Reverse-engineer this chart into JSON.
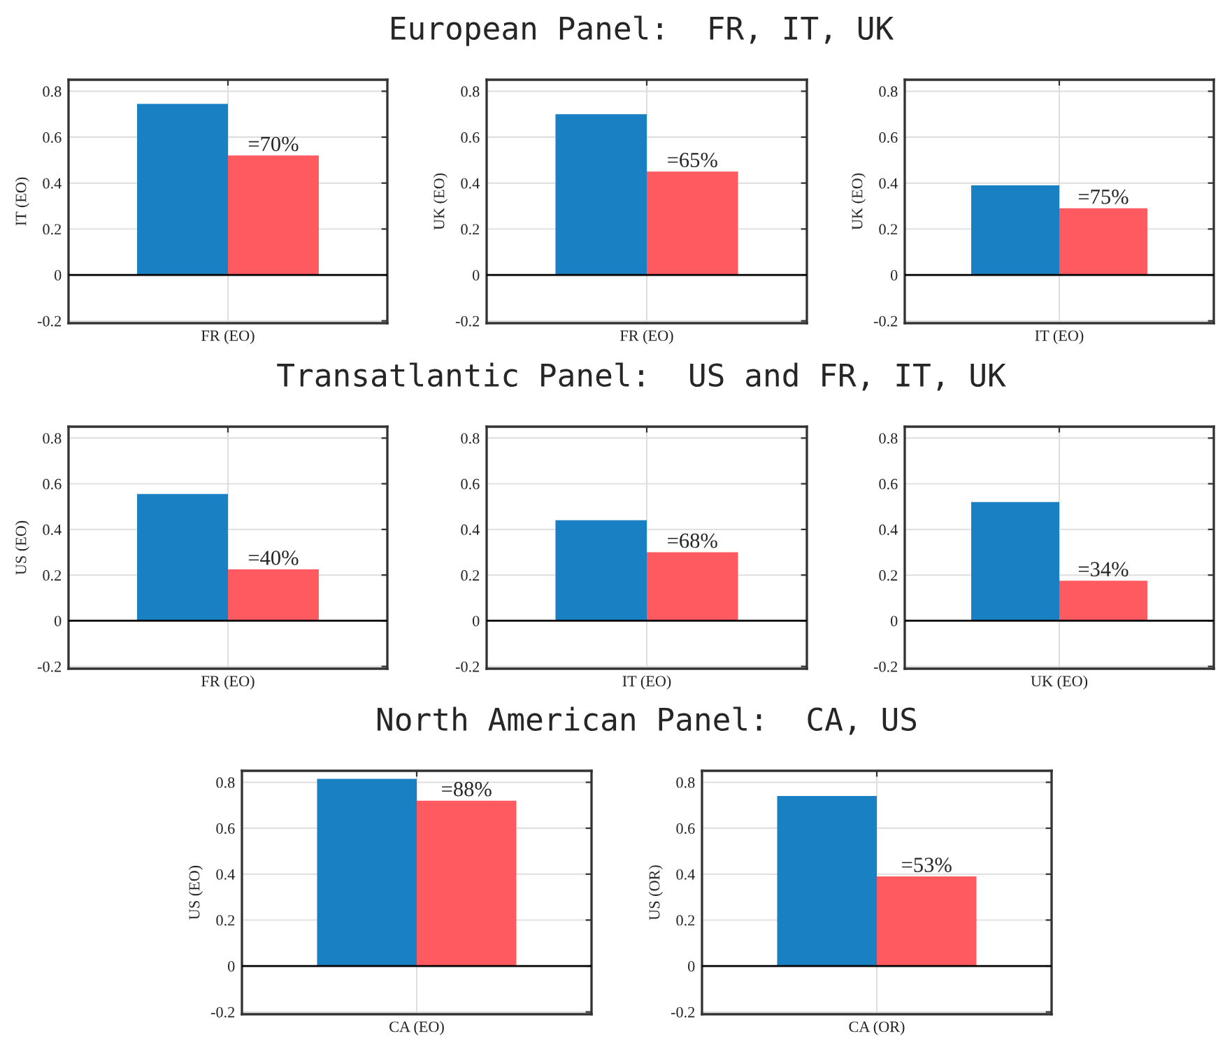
{
  "chart_data": [
    {
      "type": "bar",
      "categories": [
        "FR (EO)"
      ],
      "ylabel": "IT (EO)",
      "ylim": [
        -0.21,
        0.85
      ],
      "yticks": [
        -0.2,
        0,
        0.2,
        0.4,
        0.6,
        0.8
      ],
      "grid": true,
      "ref_lines": [
        {
          "axis": "y",
          "value": 0,
          "color": "#000000"
        }
      ],
      "annotations": [
        {
          "text": "=70%",
          "x": "FR (EO)",
          "y": 0.52
        }
      ],
      "series": [
        {
          "color": "#1a80c4",
          "values": [
            0.745
          ]
        },
        {
          "color": "#ff5a5f",
          "values": [
            0.52
          ]
        }
      ]
    },
    {
      "type": "bar",
      "title": "European Panel:  FR, IT, UK",
      "categories": [
        "FR (EO)"
      ],
      "ylabel": "UK (EO)",
      "ylim": [
        -0.21,
        0.85
      ],
      "yticks": [
        -0.2,
        0,
        0.2,
        0.4,
        0.6,
        0.8
      ],
      "grid": true,
      "ref_lines": [
        {
          "axis": "y",
          "value": 0,
          "color": "#000000"
        }
      ],
      "annotations": [
        {
          "text": "=65%",
          "x": "FR (EO)",
          "y": 0.45
        }
      ],
      "series": [
        {
          "color": "#1a80c4",
          "values": [
            0.7
          ]
        },
        {
          "color": "#ff5a5f",
          "values": [
            0.45
          ]
        }
      ]
    },
    {
      "type": "bar",
      "categories": [
        "IT (EO)"
      ],
      "ylabel": "UK (EO)",
      "ylim": [
        -0.21,
        0.85
      ],
      "yticks": [
        -0.2,
        0,
        0.2,
        0.4,
        0.6,
        0.8
      ],
      "grid": true,
      "ref_lines": [
        {
          "axis": "y",
          "value": 0,
          "color": "#000000"
        }
      ],
      "annotations": [
        {
          "text": "=75%",
          "x": "IT (EO)",
          "y": 0.29
        }
      ],
      "series": [
        {
          "color": "#1a80c4",
          "values": [
            0.39
          ]
        },
        {
          "color": "#ff5a5f",
          "values": [
            0.29
          ]
        }
      ]
    },
    {
      "type": "bar",
      "categories": [
        "FR (EO)"
      ],
      "ylabel": "US (EO)",
      "ylim": [
        -0.21,
        0.85
      ],
      "yticks": [
        -0.2,
        0,
        0.2,
        0.4,
        0.6,
        0.8
      ],
      "grid": true,
      "ref_lines": [
        {
          "axis": "y",
          "value": 0,
          "color": "#000000"
        }
      ],
      "annotations": [
        {
          "text": "=40%",
          "x": "FR (EO)",
          "y": 0.225
        }
      ],
      "series": [
        {
          "color": "#1a80c4",
          "values": [
            0.555
          ]
        },
        {
          "color": "#ff5a5f",
          "values": [
            0.225
          ]
        }
      ]
    },
    {
      "type": "bar",
      "title": "Transatlantic Panel:  US and FR, IT, UK",
      "categories": [
        "IT (EO)"
      ],
      "ylim": [
        -0.21,
        0.85
      ],
      "yticks": [
        -0.2,
        0,
        0.2,
        0.4,
        0.6,
        0.8
      ],
      "grid": true,
      "ref_lines": [
        {
          "axis": "y",
          "value": 0,
          "color": "#000000"
        }
      ],
      "annotations": [
        {
          "text": "=68%",
          "x": "IT (EO)",
          "y": 0.3
        }
      ],
      "series": [
        {
          "color": "#1a80c4",
          "values": [
            0.44
          ]
        },
        {
          "color": "#ff5a5f",
          "values": [
            0.3
          ]
        }
      ]
    },
    {
      "type": "bar",
      "categories": [
        "UK (EO)"
      ],
      "ylim": [
        -0.21,
        0.85
      ],
      "yticks": [
        -0.2,
        0,
        0.2,
        0.4,
        0.6,
        0.8
      ],
      "grid": true,
      "ref_lines": [
        {
          "axis": "y",
          "value": 0,
          "color": "#000000"
        }
      ],
      "annotations": [
        {
          "text": "=34%",
          "x": "UK (EO)",
          "y": 0.175
        }
      ],
      "series": [
        {
          "color": "#1a80c4",
          "values": [
            0.52
          ]
        },
        {
          "color": "#ff5a5f",
          "values": [
            0.175
          ]
        }
      ]
    },
    {
      "type": "bar",
      "title": "North American Panel:  CA, US",
      "categories": [
        "CA (EO)"
      ],
      "ylabel": "US (EO)",
      "ylim": [
        -0.21,
        0.85
      ],
      "yticks": [
        -0.2,
        0,
        0.2,
        0.4,
        0.6,
        0.8
      ],
      "grid": true,
      "ref_lines": [
        {
          "axis": "y",
          "value": 0,
          "color": "#000000"
        }
      ],
      "annotations": [
        {
          "text": "=88%",
          "x": "CA (EO)",
          "y": 0.72
        }
      ],
      "series": [
        {
          "color": "#1a80c4",
          "values": [
            0.815
          ]
        },
        {
          "color": "#ff5a5f",
          "values": [
            0.72
          ]
        }
      ]
    },
    {
      "type": "bar",
      "categories": [
        "CA (OR)"
      ],
      "ylabel": "US (OR)",
      "ylim": [
        -0.21,
        0.85
      ],
      "yticks": [
        -0.2,
        0,
        0.2,
        0.4,
        0.6,
        0.8
      ],
      "grid": true,
      "ref_lines": [
        {
          "axis": "y",
          "value": 0,
          "color": "#000000"
        }
      ],
      "annotations": [
        {
          "text": "=53%",
          "x": "CA (OR)",
          "y": 0.39
        }
      ],
      "series": [
        {
          "color": "#1a80c4",
          "values": [
            0.74
          ]
        },
        {
          "color": "#ff5a5f",
          "values": [
            0.39
          ]
        }
      ]
    }
  ]
}
